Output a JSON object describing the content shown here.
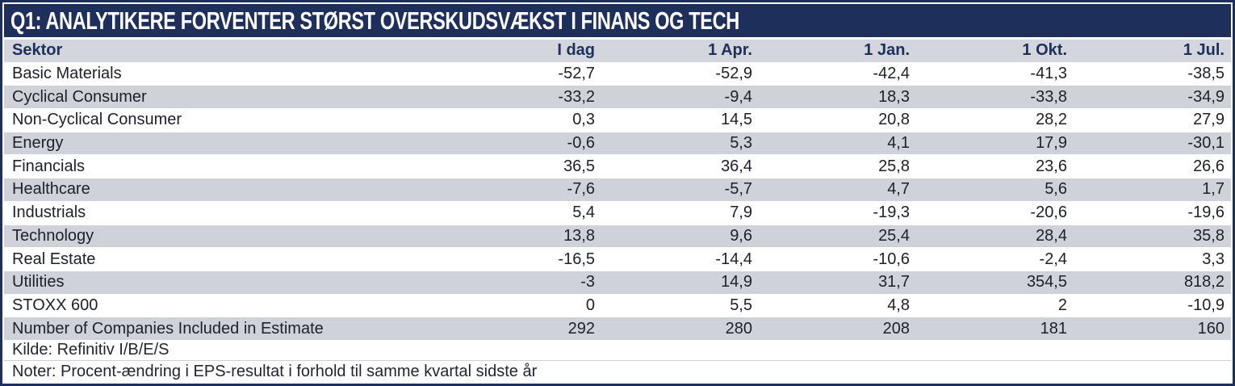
{
  "title": "Q1: ANALYTIKERE FORVENTER STØRST OVERSKUDSVÆKST I FINANS OG TECH",
  "chart_data": {
    "type": "table",
    "title": "Q1: ANALYTIKERE FORVENTER STØRST OVERSKUDSVÆKST I FINANS OG TECH",
    "columns": [
      "Sektor",
      "I dag",
      "1 Apr.",
      "1 Jan.",
      "1 Okt.",
      "1 Jul."
    ],
    "rows": [
      {
        "label": "Basic Materials",
        "values": [
          "-52,7",
          "-52,9",
          "-42,4",
          "-41,3",
          "-38,5"
        ]
      },
      {
        "label": "Cyclical Consumer",
        "values": [
          "-33,2",
          "-9,4",
          "18,3",
          "-33,8",
          "-34,9"
        ]
      },
      {
        "label": "Non-Cyclical Consumer",
        "values": [
          "0,3",
          "14,5",
          "20,8",
          "28,2",
          "27,9"
        ]
      },
      {
        "label": "Energy",
        "values": [
          "-0,6",
          "5,3",
          "4,1",
          "17,9",
          "-30,1"
        ]
      },
      {
        "label": "Financials",
        "values": [
          "36,5",
          "36,4",
          "25,8",
          "23,6",
          "26,6"
        ]
      },
      {
        "label": "Healthcare",
        "values": [
          "-7,6",
          "-5,7",
          "4,7",
          "5,6",
          "1,7"
        ]
      },
      {
        "label": "Industrials",
        "values": [
          "5,4",
          "7,9",
          "-19,3",
          "-20,6",
          "-19,6"
        ]
      },
      {
        "label": "Technology",
        "values": [
          "13,8",
          "9,6",
          "25,4",
          "28,4",
          "35,8"
        ]
      },
      {
        "label": "Real Estate",
        "values": [
          "-16,5",
          "-14,4",
          "-10,6",
          "-2,4",
          "3,3"
        ]
      },
      {
        "label": "Utilities",
        "values": [
          "-3",
          "14,9",
          "31,7",
          "354,5",
          "818,2"
        ]
      },
      {
        "label": "STOXX 600",
        "values": [
          "0",
          "5,5",
          "4,8",
          "2",
          "-10,9"
        ]
      },
      {
        "label": "Number of Companies Included in Estimate",
        "values": [
          "292",
          "280",
          "208",
          "181",
          "160"
        ]
      }
    ],
    "source": "Kilde: Refinitiv I/B/E/S",
    "notes": "Noter: Procent-ændring i EPS-resultat i forhold til samme kvartal sidste år",
    "value_unit": "percent change in EPS vs same quarter last year",
    "legend_position": "none",
    "grid": false
  },
  "colors": {
    "navy": "#1f2f5b",
    "header_bg": "#d4d6dd",
    "row_alt_bg": "#cfd2d9",
    "row_bg": "#ffffff",
    "body_text": "#1d2029",
    "title_text": "#ffffff"
  }
}
